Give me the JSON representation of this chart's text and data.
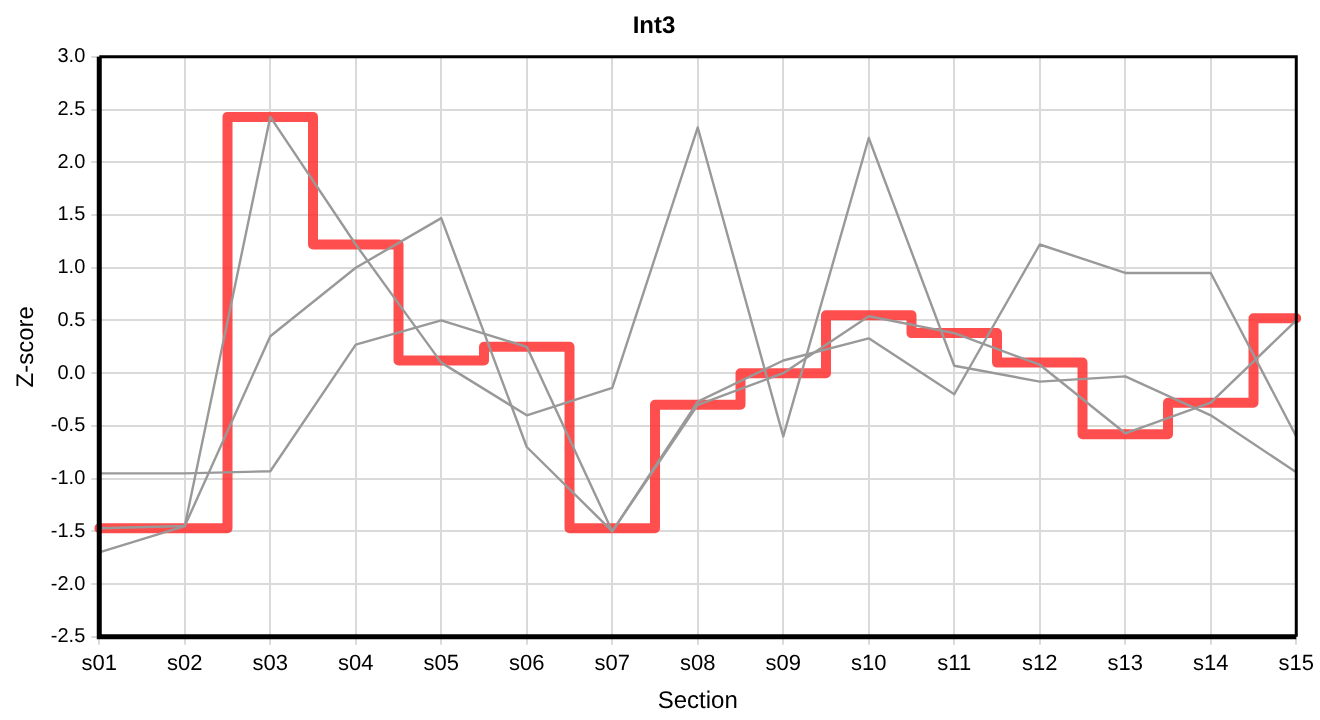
{
  "chart_data": {
    "type": "line",
    "title": "Int3",
    "xlabel": "Section",
    "ylabel": "Z-score",
    "categories": [
      "s01",
      "s02",
      "s03",
      "s04",
      "s05",
      "s06",
      "s07",
      "s08",
      "s09",
      "s10",
      "s11",
      "s12",
      "s13",
      "s14",
      "s15"
    ],
    "series": [
      {
        "color": "#999999",
        "values": [
          -1.47,
          -1.45,
          2.43,
          1.22,
          0.1,
          -0.4,
          -0.14,
          2.33,
          -0.6,
          2.23,
          0.07,
          -0.08,
          -0.03,
          -0.4,
          -0.94
        ]
      },
      {
        "color": "#999999",
        "values": [
          -0.95,
          -0.95,
          -0.93,
          0.27,
          0.5,
          0.25,
          -1.5,
          -0.27,
          0.12,
          0.33,
          -0.2,
          1.22,
          0.95,
          0.95,
          -0.6
        ]
      },
      {
        "color": "#999999",
        "values": [
          -1.7,
          -1.45,
          0.35,
          1.0,
          1.47,
          -0.7,
          -1.5,
          -0.3,
          0.0,
          0.54,
          0.38,
          0.08,
          -0.57,
          -0.28,
          0.5
        ]
      },
      {
        "type": "step",
        "color": "#ff3333",
        "values": [
          -1.47,
          -1.47,
          2.43,
          1.22,
          0.12,
          0.25,
          -1.47,
          -0.3,
          0.0,
          0.55,
          0.38,
          0.1,
          -0.58,
          -0.28,
          0.52
        ]
      }
    ],
    "ylim": [
      -2.5,
      3.0
    ],
    "yticks": [
      {
        "value": -2.5,
        "label": "-2.5"
      },
      {
        "value": -2,
        "label": "-2.0"
      },
      {
        "value": -1.5,
        "label": "-1.5"
      },
      {
        "value": -1,
        "label": "-1.0"
      },
      {
        "value": -0.5,
        "label": "-0.5"
      },
      {
        "value": 0,
        "label": "0.0"
      },
      {
        "value": 0.5,
        "label": "0.5"
      },
      {
        "value": 1,
        "label": "1.0"
      },
      {
        "value": 1.5,
        "label": "1.5"
      },
      {
        "value": 2,
        "label": "2.0"
      },
      {
        "value": 2.5,
        "label": "2.5"
      },
      {
        "value": 3,
        "label": "3.0"
      }
    ],
    "grid": true,
    "legend": false,
    "marker": "none",
    "line_style": "solid"
  }
}
